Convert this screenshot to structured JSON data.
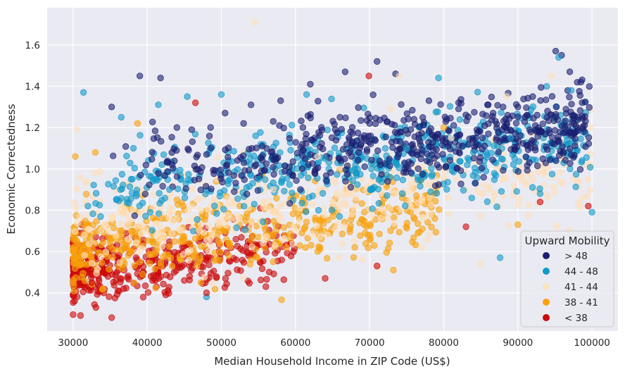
{
  "chart_data": {
    "type": "scatter",
    "title": "",
    "xlabel": "Median Household Income in ZIP Code (US$)",
    "ylabel": "Economic Correctedness",
    "xlim": [
      26500,
      103500
    ],
    "ylim": [
      0.215,
      1.78
    ],
    "x_ticks": [
      30000,
      40000,
      50000,
      60000,
      70000,
      80000,
      90000,
      100000
    ],
    "x_tick_labels": [
      "30000",
      "40000",
      "50000",
      "60000",
      "70000",
      "80000",
      "90000",
      "100000"
    ],
    "y_ticks": [
      0.4,
      0.6,
      0.8,
      1.0,
      1.2,
      1.4,
      1.6
    ],
    "y_tick_labels": [
      "0.4",
      "0.6",
      "0.8",
      "1.0",
      "1.2",
      "1.4",
      "1.6"
    ],
    "grid": true,
    "background": "#eaeaf2",
    "marker_alpha": 0.6,
    "legend": {
      "title": "Upward Mobility",
      "placement": "lower-right",
      "entries": [
        {
          "label": "> 48",
          "color": "#1a1f71"
        },
        {
          "label": "44 - 48",
          "color": "#1199c9"
        },
        {
          "label": "41 - 44",
          "color": "#fde0bd"
        },
        {
          "label": "38 - 41",
          "color": "#f9a20c"
        },
        {
          "label": "< 38",
          "color": "#cc0a0a"
        }
      ]
    },
    "series": [
      {
        "name": "> 48",
        "color": "#1a1f71",
        "x": [
          39000,
          41800,
          66700,
          71000,
          73500,
          95100,
          95900,
          97000,
          98500,
          35200,
          92000,
          88000,
          62000,
          58000,
          54000,
          50500,
          46000,
          44000,
          78000,
          82000,
          86000,
          90000,
          94000,
          99000,
          76000,
          70000,
          66000,
          61000,
          57000,
          53000
        ],
        "y": [
          1.45,
          1.44,
          1.47,
          1.52,
          1.46,
          1.57,
          1.55,
          1.47,
          1.42,
          1.3,
          1.35,
          1.3,
          1.41,
          1.33,
          1.31,
          1.27,
          1.19,
          1.2,
          1.33,
          1.29,
          1.31,
          1.3,
          1.28,
          1.18,
          1.24,
          1.22,
          1.25,
          1.2,
          1.23,
          1.22
        ]
      },
      {
        "name": "44 - 48",
        "color": "#1199c9",
        "x": [
          31400,
          36500,
          41500,
          45400,
          50000,
          61500,
          79300,
          95500,
          97200,
          89000,
          84000,
          75000,
          68000,
          64000,
          55000,
          48000,
          43000,
          38000,
          32000,
          87600,
          100000,
          93000
        ],
        "y": [
          1.37,
          1.25,
          1.31,
          1.35,
          1.36,
          1.36,
          1.44,
          1.54,
          1.38,
          1.15,
          1.08,
          1.1,
          1.0,
          1.05,
          0.95,
          0.38,
          0.9,
          0.95,
          0.82,
          0.57,
          0.79,
          0.88
        ]
      },
      {
        "name": "41 - 44",
        "color": "#fde0bd",
        "x": [
          54500,
          94500,
          88500,
          81000,
          74000,
          63000,
          57000,
          52000,
          47000,
          42000,
          37000,
          33000,
          30500,
          85000,
          77000,
          69000,
          60000
        ],
        "y": [
          1.71,
          1.45,
          1.35,
          1.15,
          1.45,
          1.06,
          0.9,
          0.75,
          0.7,
          0.65,
          0.78,
          0.98,
          1.19,
          0.54,
          0.62,
          0.56,
          0.7
        ]
      },
      {
        "name": "38 - 41",
        "color": "#f9a20c",
        "x": [
          38700,
          30300,
          33000,
          42000,
          47000,
          51000,
          57000,
          63000,
          73200,
          68000,
          80000,
          90000,
          35000,
          44000,
          39000
        ],
        "y": [
          1.22,
          1.06,
          1.08,
          0.76,
          0.67,
          0.58,
          0.55,
          0.6,
          0.51,
          0.62,
          1.2,
          0.73,
          0.65,
          0.85,
          0.55
        ]
      },
      {
        "name": "< 38",
        "color": "#cc0a0a",
        "x": [
          69900,
          46500,
          30200,
          31000,
          32500,
          34000,
          35200,
          36800,
          38500,
          40500,
          42500,
          45000,
          48000,
          52000,
          56000,
          64000,
          71000,
          83000,
          93000,
          99500
        ],
        "y": [
          1.45,
          1.32,
          0.36,
          0.29,
          0.45,
          0.5,
          0.28,
          0.42,
          0.57,
          0.48,
          0.39,
          0.46,
          0.4,
          0.56,
          0.43,
          0.47,
          0.53,
          0.72,
          0.84,
          0.82
        ]
      }
    ]
  }
}
